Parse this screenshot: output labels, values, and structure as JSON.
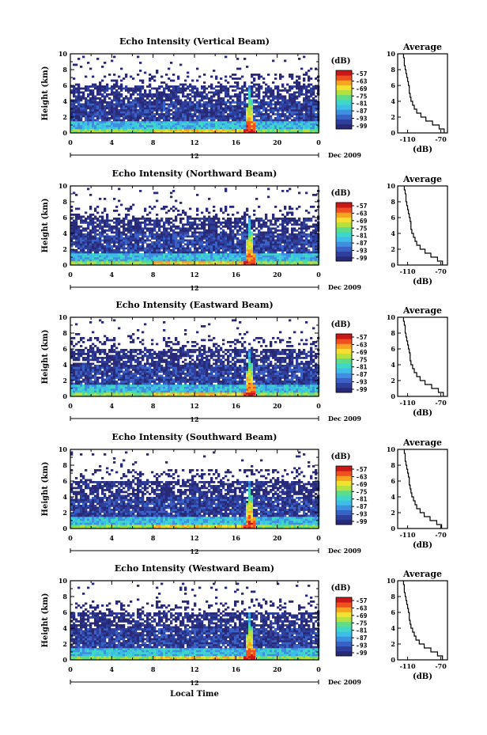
{
  "figure": {
    "date_label": "Dec 2009",
    "day_label": "12",
    "xlabel": "Local Time",
    "ylabel": "Height (km)",
    "colorbar_unit": "(dB)",
    "colorbar_ticks": [
      "-57",
      "-63",
      "-69",
      "-75",
      "-81",
      "-87",
      "-93",
      "-99"
    ],
    "avg_title": "Average",
    "avg_xlabel": "(dB)",
    "palette": [
      "#282a78",
      "#2e3f9c",
      "#3a62c6",
      "#3f8fe0",
      "#3dbde8",
      "#3fd7c8",
      "#5fdc88",
      "#b4e040",
      "#f4e030",
      "#f7a520",
      "#f05020",
      "#c81818"
    ]
  },
  "chart_data": [
    {
      "type": "heatmap",
      "title": "Echo Intensity (Vertical Beam)",
      "xlabel": "Local Time",
      "ylabel": "Height (km)",
      "xlim": [
        0,
        24
      ],
      "ylim": [
        0,
        10
      ],
      "x_ticks": [
        "0",
        "4",
        "8",
        "12",
        "16",
        "20",
        "0"
      ],
      "y_ticks": [
        "0",
        "2",
        "4",
        "6",
        "8",
        "10"
      ],
      "colorbar": {
        "label": "(dB)",
        "ticks": [
          -57,
          -63,
          -69,
          -75,
          -81,
          -87,
          -93,
          -99
        ]
      },
      "average_profile": {
        "title": "Average",
        "xlabel": "(dB)",
        "x_ticks": [
          "-110",
          "-70"
        ],
        "xlim": [
          -122,
          -62
        ],
        "ylim": [
          0,
          10
        ],
        "height_km": [
          0,
          0.5,
          1,
          1.5,
          2,
          2.5,
          3,
          3.5,
          4,
          4.5,
          5,
          5.5,
          6,
          6.5,
          7,
          7.5,
          8,
          8.5,
          9,
          9.5
        ],
        "db": [
          -66,
          -72,
          -80,
          -88,
          -94,
          -99,
          -102,
          -104,
          -106,
          -107,
          -108,
          -108,
          -109,
          -110,
          -111,
          -112,
          -113,
          -114,
          -114,
          -115
        ]
      }
    },
    {
      "type": "heatmap",
      "title": "Echo Intensity (Northward Beam)",
      "xlabel": "Local Time",
      "ylabel": "Height (km)",
      "xlim": [
        0,
        24
      ],
      "ylim": [
        0,
        10
      ],
      "x_ticks": [
        "0",
        "4",
        "8",
        "12",
        "16",
        "20",
        "0"
      ],
      "y_ticks": [
        "0",
        "2",
        "4",
        "6",
        "8",
        "10"
      ],
      "colorbar": {
        "label": "(dB)",
        "ticks": [
          -57,
          -63,
          -69,
          -75,
          -81,
          -87,
          -93,
          -99
        ]
      },
      "average_profile": {
        "title": "Average",
        "xlabel": "(dB)",
        "x_ticks": [
          "-110",
          "-70"
        ],
        "xlim": [
          -122,
          -62
        ],
        "ylim": [
          0,
          10
        ],
        "height_km": [
          0,
          0.5,
          1,
          1.5,
          2,
          2.5,
          3,
          3.5,
          4,
          4.5,
          5,
          5.5,
          6,
          6.5,
          7,
          7.5,
          8,
          8.5,
          9,
          9.5
        ],
        "db": [
          -68,
          -74,
          -82,
          -89,
          -95,
          -99,
          -101,
          -103,
          -105,
          -106,
          -106,
          -107,
          -108,
          -109,
          -110,
          -111,
          -112,
          -112,
          -113,
          -114
        ]
      }
    },
    {
      "type": "heatmap",
      "title": "Echo Intensity (Eastward Beam)",
      "xlabel": "Local Time",
      "ylabel": "Height (km)",
      "xlim": [
        0,
        24
      ],
      "ylim": [
        0,
        10
      ],
      "x_ticks": [
        "0",
        "4",
        "8",
        "12",
        "16",
        "20",
        "0"
      ],
      "y_ticks": [
        "0",
        "2",
        "4",
        "6",
        "8",
        "10"
      ],
      "colorbar": {
        "label": "(dB)",
        "ticks": [
          -57,
          -63,
          -69,
          -75,
          -81,
          -87,
          -93,
          -99
        ]
      },
      "average_profile": {
        "title": "Average",
        "xlabel": "(dB)",
        "x_ticks": [
          "-110",
          "-70"
        ],
        "xlim": [
          -122,
          -62
        ],
        "ylim": [
          0,
          10
        ],
        "height_km": [
          0,
          0.5,
          1,
          1.5,
          2,
          2.5,
          3,
          3.5,
          4,
          4.5,
          5,
          5.5,
          6,
          6.5,
          7,
          7.5,
          8,
          8.5,
          9,
          9.5
        ],
        "db": [
          -67,
          -73,
          -81,
          -89,
          -95,
          -99,
          -102,
          -104,
          -106,
          -107,
          -107,
          -108,
          -109,
          -110,
          -111,
          -112,
          -113,
          -113,
          -114,
          -115
        ]
      }
    },
    {
      "type": "heatmap",
      "title": "Echo Intensity (Southward Beam)",
      "xlabel": "Local Time",
      "ylabel": "Height (km)",
      "xlim": [
        0,
        24
      ],
      "ylim": [
        0,
        10
      ],
      "x_ticks": [
        "0",
        "4",
        "8",
        "12",
        "16",
        "20",
        "0"
      ],
      "y_ticks": [
        "0",
        "2",
        "4",
        "6",
        "8",
        "10"
      ],
      "colorbar": {
        "label": "(dB)",
        "ticks": [
          -57,
          -63,
          -69,
          -75,
          -81,
          -87,
          -93,
          -99
        ]
      },
      "average_profile": {
        "title": "Average",
        "xlabel": "(dB)",
        "x_ticks": [
          "-110",
          "-70"
        ],
        "xlim": [
          -122,
          -62
        ],
        "ylim": [
          0,
          10
        ],
        "height_km": [
          0,
          0.5,
          1,
          1.5,
          2,
          2.5,
          3,
          3.5,
          4,
          4.5,
          5,
          5.5,
          6,
          6.5,
          7,
          7.5,
          8,
          8.5,
          9,
          9.5
        ],
        "db": [
          -69,
          -75,
          -83,
          -90,
          -95,
          -99,
          -101,
          -103,
          -105,
          -106,
          -107,
          -108,
          -108,
          -109,
          -110,
          -111,
          -112,
          -113,
          -113,
          -114
        ]
      }
    },
    {
      "type": "heatmap",
      "title": "Echo Intensity (Westward Beam)",
      "xlabel": "Local Time",
      "ylabel": "Height (km)",
      "xlim": [
        0,
        24
      ],
      "ylim": [
        0,
        10
      ],
      "x_ticks": [
        "0",
        "4",
        "8",
        "12",
        "16",
        "20",
        "0"
      ],
      "y_ticks": [
        "0",
        "2",
        "4",
        "6",
        "8",
        "10"
      ],
      "colorbar": {
        "label": "(dB)",
        "ticks": [
          -57,
          -63,
          -69,
          -75,
          -81,
          -87,
          -93,
          -99
        ]
      },
      "average_profile": {
        "title": "Average",
        "xlabel": "(dB)",
        "x_ticks": [
          "-110",
          "-70"
        ],
        "xlim": [
          -122,
          -62
        ],
        "ylim": [
          0,
          10
        ],
        "height_km": [
          0,
          0.5,
          1,
          1.5,
          2,
          2.5,
          3,
          3.5,
          4,
          4.5,
          5,
          5.5,
          6,
          6.5,
          7,
          7.5,
          8,
          8.5,
          9,
          9.5
        ],
        "db": [
          -68,
          -74,
          -82,
          -90,
          -96,
          -100,
          -102,
          -104,
          -106,
          -107,
          -108,
          -108,
          -109,
          -110,
          -111,
          -112,
          -113,
          -114,
          -114,
          -115
        ]
      }
    }
  ]
}
